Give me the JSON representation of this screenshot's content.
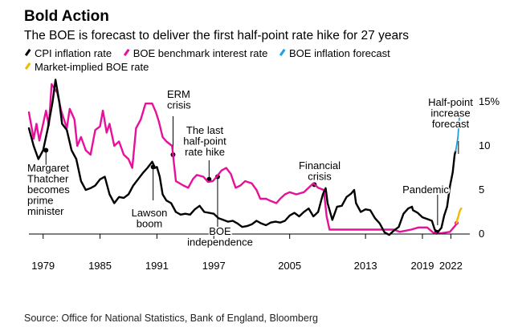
{
  "header": {
    "title": "Bold Action",
    "subtitle": "The BOE is forecast to deliver the first half-point rate hike for 27 years"
  },
  "legend": [
    {
      "label": "CPI inflation rate",
      "color": "#000000"
    },
    {
      "label": "BOE benchmark interest rate",
      "color": "#e8109b"
    },
    {
      "label": "BOE inflation forecast",
      "color": "#1ba1e2"
    },
    {
      "label": "Market-implied BOE rate",
      "color": "#f5b800"
    }
  ],
  "source": "Source: Office for National Statistics, Bank of England, Bloomberg",
  "chart_data": {
    "type": "line",
    "xlabel": "",
    "ylabel": "",
    "x_ticks": [
      "1979",
      "1985",
      "1991",
      "1997",
      "2005",
      "2013",
      "2019",
      "2022"
    ],
    "x_tick_values": [
      1979,
      1985,
      1991,
      1997,
      2005,
      2013,
      2019,
      2022
    ],
    "y_ticks": [
      "0",
      "5",
      "10",
      "15%"
    ],
    "y_tick_values": [
      0,
      5,
      10,
      15
    ],
    "xlim": [
      1977.5,
      2024
    ],
    "ylim": [
      0,
      16
    ],
    "grid": false,
    "legend_position": "top",
    "series": [
      {
        "name": "CPI inflation rate",
        "color": "#000000",
        "points": [
          [
            1977.5,
            12
          ],
          [
            1978,
            10
          ],
          [
            1978.5,
            8.5
          ],
          [
            1979,
            9.5
          ],
          [
            1979.5,
            12
          ],
          [
            1980,
            15
          ],
          [
            1980.3,
            17.5
          ],
          [
            1980.7,
            15
          ],
          [
            1981,
            12.5
          ],
          [
            1981.5,
            11.8
          ],
          [
            1982,
            9.5
          ],
          [
            1982.5,
            8.5
          ],
          [
            1983,
            6
          ],
          [
            1983.5,
            5
          ],
          [
            1984,
            5.2
          ],
          [
            1984.5,
            5.5
          ],
          [
            1985,
            6.2
          ],
          [
            1985.5,
            6.5
          ],
          [
            1986,
            4.5
          ],
          [
            1986.5,
            3.5
          ],
          [
            1987,
            4.2
          ],
          [
            1987.5,
            4.1
          ],
          [
            1988,
            4.5
          ],
          [
            1988.5,
            5.5
          ],
          [
            1989,
            6.2
          ],
          [
            1989.5,
            6.9
          ],
          [
            1990,
            7.5
          ],
          [
            1990.5,
            8.2
          ],
          [
            1990.8,
            7.5
          ],
          [
            1991,
            7.6
          ],
          [
            1991.3,
            6.5
          ],
          [
            1991.6,
            4.5
          ],
          [
            1992,
            3.8
          ],
          [
            1992.5,
            3.5
          ],
          [
            1993,
            2.5
          ],
          [
            1993.5,
            2.2
          ],
          [
            1994,
            2.3
          ],
          [
            1994.5,
            2.2
          ],
          [
            1995,
            2.8
          ],
          [
            1995.5,
            3.2
          ],
          [
            1996,
            2.5
          ],
          [
            1996.5,
            2.4
          ],
          [
            1997,
            2.3
          ],
          [
            1997.5,
            1.8
          ],
          [
            1998,
            1.6
          ],
          [
            1998.5,
            1.4
          ],
          [
            1999,
            1.5
          ],
          [
            1999.5,
            1.2
          ],
          [
            2000,
            0.8
          ],
          [
            2000.5,
            0.9
          ],
          [
            2001,
            1.1
          ],
          [
            2001.5,
            1.5
          ],
          [
            2002,
            1.2
          ],
          [
            2002.5,
            1.0
          ],
          [
            2003,
            1.3
          ],
          [
            2003.5,
            1.4
          ],
          [
            2004,
            1.3
          ],
          [
            2004.5,
            1.5
          ],
          [
            2005,
            2.1
          ],
          [
            2005.5,
            2.4
          ],
          [
            2006,
            2.0
          ],
          [
            2006.5,
            2.5
          ],
          [
            2007,
            2.9
          ],
          [
            2007.5,
            2.0
          ],
          [
            2008,
            2.5
          ],
          [
            2008.5,
            4.5
          ],
          [
            2008.8,
            5.2
          ],
          [
            2009,
            3.5
          ],
          [
            2009.5,
            1.6
          ],
          [
            2010,
            3.1
          ],
          [
            2010.5,
            3.2
          ],
          [
            2011,
            4.2
          ],
          [
            2011.5,
            4.6
          ],
          [
            2011.8,
            5.0
          ],
          [
            2012,
            3.5
          ],
          [
            2012.5,
            2.5
          ],
          [
            2013,
            2.8
          ],
          [
            2013.5,
            2.7
          ],
          [
            2014,
            1.8
          ],
          [
            2014.5,
            1.2
          ],
          [
            2015,
            0.2
          ],
          [
            2015.5,
            -0.1
          ],
          [
            2016,
            0.4
          ],
          [
            2016.5,
            0.8
          ],
          [
            2017,
            2.3
          ],
          [
            2017.5,
            2.9
          ],
          [
            2017.9,
            3.1
          ],
          [
            2018,
            2.7
          ],
          [
            2018.5,
            2.4
          ],
          [
            2019,
            1.9
          ],
          [
            2019.5,
            1.7
          ],
          [
            2020,
            1.5
          ],
          [
            2020.3,
            0.5
          ],
          [
            2020.6,
            0.2
          ],
          [
            2021,
            0.7
          ],
          [
            2021.3,
            2.1
          ],
          [
            2021.6,
            3.1
          ],
          [
            2021.9,
            5.4
          ],
          [
            2022.2,
            7.0
          ],
          [
            2022.4,
            9.0
          ],
          [
            2022.5,
            9.4
          ]
        ]
      },
      {
        "name": "BOE benchmark interest rate",
        "color": "#e8109b",
        "points": [
          [
            1977.5,
            13.8
          ],
          [
            1978,
            10.8
          ],
          [
            1978.3,
            12.5
          ],
          [
            1978.6,
            10.6
          ],
          [
            1979,
            12.5
          ],
          [
            1979.3,
            14
          ],
          [
            1979.6,
            12.3
          ],
          [
            1979.9,
            17
          ],
          [
            1980.5,
            16
          ],
          [
            1980.9,
            14
          ],
          [
            1981.5,
            12
          ],
          [
            1981.8,
            14.2
          ],
          [
            1982.3,
            13
          ],
          [
            1982.6,
            10
          ],
          [
            1983,
            11
          ],
          [
            1983.5,
            9.5
          ],
          [
            1984,
            9
          ],
          [
            1984.5,
            11.8
          ],
          [
            1985,
            12.2
          ],
          [
            1985.3,
            14
          ],
          [
            1985.7,
            11.5
          ],
          [
            1986,
            12.5
          ],
          [
            1986.5,
            10
          ],
          [
            1987,
            10.5
          ],
          [
            1987.5,
            9
          ],
          [
            1988,
            8.5
          ],
          [
            1988.4,
            7.5
          ],
          [
            1988.8,
            12
          ],
          [
            1989.3,
            13
          ],
          [
            1989.8,
            14.8
          ],
          [
            1990.5,
            14.8
          ],
          [
            1990.9,
            13.8
          ],
          [
            1991.2,
            12.8
          ],
          [
            1991.6,
            11
          ],
          [
            1992,
            10.5
          ],
          [
            1992.6,
            10
          ],
          [
            1992.8,
            8
          ],
          [
            1993,
            6
          ],
          [
            1993.8,
            5.5
          ],
          [
            1994.3,
            5.25
          ],
          [
            1994.8,
            6.25
          ],
          [
            1995.2,
            6.7
          ],
          [
            1995.9,
            6.5
          ],
          [
            1996.4,
            5.9
          ],
          [
            1996.9,
            6
          ],
          [
            1997.3,
            6.5
          ],
          [
            1997.8,
            7.2
          ],
          [
            1998.3,
            7.5
          ],
          [
            1998.8,
            6.8
          ],
          [
            1999.3,
            5.25
          ],
          [
            1999.8,
            5.5
          ],
          [
            2000.3,
            6
          ],
          [
            2001,
            5.75
          ],
          [
            2001.5,
            5
          ],
          [
            2001.9,
            4
          ],
          [
            2002.5,
            4
          ],
          [
            2003,
            3.75
          ],
          [
            2003.6,
            3.5
          ],
          [
            2004,
            4
          ],
          [
            2004.5,
            4.5
          ],
          [
            2005,
            4.75
          ],
          [
            2005.7,
            4.5
          ],
          [
            2006.5,
            4.75
          ],
          [
            2007,
            5.25
          ],
          [
            2007.5,
            5.75
          ],
          [
            2008,
            5.25
          ],
          [
            2008.6,
            5
          ],
          [
            2008.9,
            2
          ],
          [
            2009.2,
            0.5
          ],
          [
            2010,
            0.5
          ],
          [
            2012,
            0.5
          ],
          [
            2014,
            0.5
          ],
          [
            2016,
            0.5
          ],
          [
            2016.6,
            0.25
          ],
          [
            2017.8,
            0.5
          ],
          [
            2018.6,
            0.75
          ],
          [
            2019.5,
            0.75
          ],
          [
            2020.2,
            0.1
          ],
          [
            2021,
            0.1
          ],
          [
            2021.9,
            0.25
          ],
          [
            2022.1,
            0.5
          ],
          [
            2022.3,
            0.75
          ],
          [
            2022.5,
            1.0
          ],
          [
            2022.6,
            1.25
          ]
        ]
      },
      {
        "name": "BOE inflation forecast",
        "color": "#1ba1e2",
        "points": [
          [
            2022.5,
            9.4
          ],
          [
            2022.6,
            10.0
          ],
          [
            2022.75,
            11.0
          ],
          [
            2022.9,
            13.3
          ]
        ]
      },
      {
        "name": "Market-implied BOE rate",
        "color": "#f5b800",
        "points": [
          [
            2022.6,
            1.25
          ],
          [
            2022.7,
            1.75
          ],
          [
            2022.8,
            2.0
          ],
          [
            2022.9,
            2.5
          ],
          [
            2023.0,
            2.75
          ],
          [
            2023.1,
            2.9
          ]
        ]
      }
    ],
    "annotations": [
      {
        "id": "thatcher",
        "text": [
          "Margaret",
          "Thatcher",
          "becomes",
          "prime",
          "minister"
        ]
      },
      {
        "id": "lawson",
        "text": [
          "Lawson",
          "boom"
        ]
      },
      {
        "id": "erm",
        "text": [
          "ERM",
          "crisis"
        ]
      },
      {
        "id": "lasthike",
        "text": [
          "The last",
          "half-point",
          "rate hike"
        ]
      },
      {
        "id": "boeindep",
        "text": [
          "BOE",
          "independence"
        ]
      },
      {
        "id": "financial",
        "text": [
          "Financial",
          "crisis"
        ]
      },
      {
        "id": "pandemic",
        "text": [
          "Pandemic"
        ]
      },
      {
        "id": "halfpoint",
        "text": [
          "Half-point",
          "increase",
          "forecast"
        ]
      }
    ]
  }
}
